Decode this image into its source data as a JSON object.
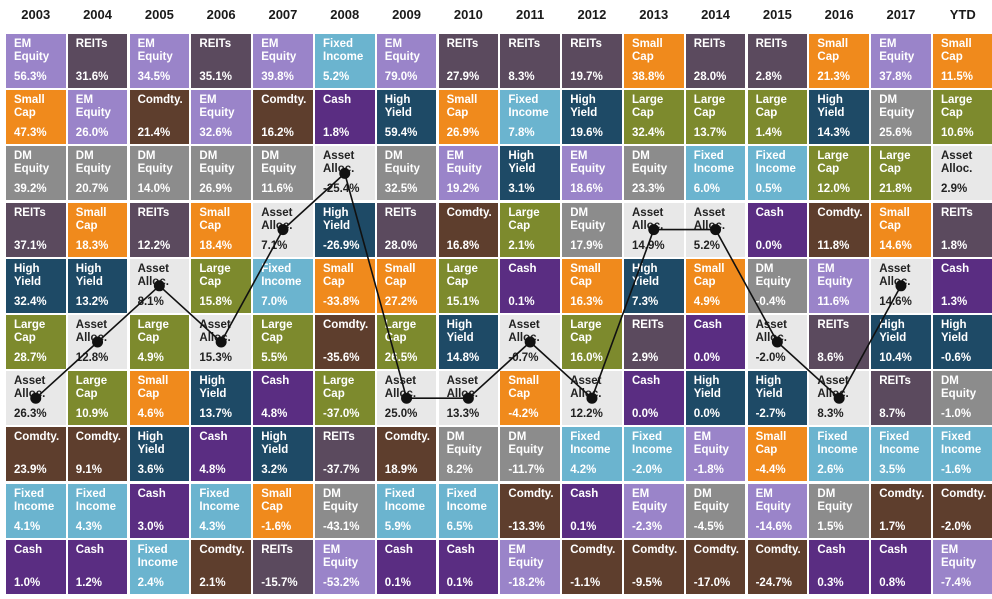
{
  "chart_data": {
    "type": "table",
    "years": [
      "2003",
      "2004",
      "2005",
      "2006",
      "2007",
      "2008",
      "2009",
      "2010",
      "2011",
      "2012",
      "2013",
      "2014",
      "2015",
      "2016",
      "2017",
      "YTD"
    ],
    "asset_colors": {
      "EM Equity": "#9a84c9",
      "REITs": "#5b4a5e",
      "Small Cap": "#f08a1c",
      "Fixed Income": "#6bb4cf",
      "Comdty.": "#5e3e2d",
      "Cash": "#5a2d82",
      "High Yield": "#1e4a66",
      "Large Cap": "#7d8a2d",
      "DM Equity": "#8c8c8c",
      "Asset Alloc.": "#e8e8e8"
    },
    "columns": [
      [
        [
          "EM Equity",
          "56.3%"
        ],
        [
          "Small Cap",
          "47.3%"
        ],
        [
          "DM Equity",
          "39.2%"
        ],
        [
          "REITs",
          "37.1%"
        ],
        [
          "High Yield",
          "32.4%"
        ],
        [
          "Large Cap",
          "28.7%"
        ],
        [
          "Asset Alloc.",
          "26.3%"
        ],
        [
          "Comdty.",
          "23.9%"
        ],
        [
          "Fixed Income",
          "4.1%"
        ],
        [
          "Cash",
          "1.0%"
        ]
      ],
      [
        [
          "REITs",
          "31.6%"
        ],
        [
          "EM Equity",
          "26.0%"
        ],
        [
          "DM Equity",
          "20.7%"
        ],
        [
          "Small Cap",
          "18.3%"
        ],
        [
          "High Yield",
          "13.2%"
        ],
        [
          "Asset Alloc.",
          "12.8%"
        ],
        [
          "Large Cap",
          "10.9%"
        ],
        [
          "Comdty.",
          "9.1%"
        ],
        [
          "Fixed Income",
          "4.3%"
        ],
        [
          "Cash",
          "1.2%"
        ]
      ],
      [
        [
          "EM Equity",
          "34.5%"
        ],
        [
          "Comdty.",
          "21.4%"
        ],
        [
          "DM Equity",
          "14.0%"
        ],
        [
          "REITs",
          "12.2%"
        ],
        [
          "Asset Alloc.",
          "8.1%"
        ],
        [
          "Large Cap",
          "4.9%"
        ],
        [
          "Small Cap",
          "4.6%"
        ],
        [
          "High Yield",
          "3.6%"
        ],
        [
          "Cash",
          "3.0%"
        ],
        [
          "Fixed Income",
          "2.4%"
        ]
      ],
      [
        [
          "REITs",
          "35.1%"
        ],
        [
          "EM Equity",
          "32.6%"
        ],
        [
          "DM Equity",
          "26.9%"
        ],
        [
          "Small Cap",
          "18.4%"
        ],
        [
          "Large Cap",
          "15.8%"
        ],
        [
          "Asset Alloc.",
          "15.3%"
        ],
        [
          "High Yield",
          "13.7%"
        ],
        [
          "Cash",
          "4.8%"
        ],
        [
          "Fixed Income",
          "4.3%"
        ],
        [
          "Comdty.",
          "2.1%"
        ]
      ],
      [
        [
          "EM Equity",
          "39.8%"
        ],
        [
          "Comdty.",
          "16.2%"
        ],
        [
          "DM Equity",
          "11.6%"
        ],
        [
          "Asset Alloc.",
          "7.1%"
        ],
        [
          "Fixed Income",
          "7.0%"
        ],
        [
          "Large Cap",
          "5.5%"
        ],
        [
          "Cash",
          "4.8%"
        ],
        [
          "High Yield",
          "3.2%"
        ],
        [
          "Small Cap",
          "-1.6%"
        ],
        [
          "REITs",
          "-15.7%"
        ]
      ],
      [
        [
          "Fixed Income",
          "5.2%"
        ],
        [
          "Cash",
          "1.8%"
        ],
        [
          "Asset Alloc.",
          "-25.4%"
        ],
        [
          "High Yield",
          "-26.9%"
        ],
        [
          "Small Cap",
          "-33.8%"
        ],
        [
          "Comdty.",
          "-35.6%"
        ],
        [
          "Large Cap",
          "-37.0%"
        ],
        [
          "REITs",
          "-37.7%"
        ],
        [
          "DM Equity",
          "-43.1%"
        ],
        [
          "EM Equity",
          "-53.2%"
        ]
      ],
      [
        [
          "EM Equity",
          "79.0%"
        ],
        [
          "High Yield",
          "59.4%"
        ],
        [
          "DM Equity",
          "32.5%"
        ],
        [
          "REITs",
          "28.0%"
        ],
        [
          "Small Cap",
          "27.2%"
        ],
        [
          "Large Cap",
          "26.5%"
        ],
        [
          "Asset Alloc.",
          "25.0%"
        ],
        [
          "Comdty.",
          "18.9%"
        ],
        [
          "Fixed Income",
          "5.9%"
        ],
        [
          "Cash",
          "0.1%"
        ]
      ],
      [
        [
          "REITs",
          "27.9%"
        ],
        [
          "Small Cap",
          "26.9%"
        ],
        [
          "EM Equity",
          "19.2%"
        ],
        [
          "Comdty.",
          "16.8%"
        ],
        [
          "Large Cap",
          "15.1%"
        ],
        [
          "High Yield",
          "14.8%"
        ],
        [
          "Asset Alloc.",
          "13.3%"
        ],
        [
          "DM Equity",
          "8.2%"
        ],
        [
          "Fixed Income",
          "6.5%"
        ],
        [
          "Cash",
          "0.1%"
        ]
      ],
      [
        [
          "REITs",
          "8.3%"
        ],
        [
          "Fixed Income",
          "7.8%"
        ],
        [
          "High Yield",
          "3.1%"
        ],
        [
          "Large Cap",
          "2.1%"
        ],
        [
          "Cash",
          "0.1%"
        ],
        [
          "Asset Alloc.",
          "-0.7%"
        ],
        [
          "Small Cap",
          "-4.2%"
        ],
        [
          "DM Equity",
          "-11.7%"
        ],
        [
          "Comdty.",
          "-13.3%"
        ],
        [
          "EM Equity",
          "-18.2%"
        ]
      ],
      [
        [
          "REITs",
          "19.7%"
        ],
        [
          "High Yield",
          "19.6%"
        ],
        [
          "EM Equity",
          "18.6%"
        ],
        [
          "DM Equity",
          "17.9%"
        ],
        [
          "Small Cap",
          "16.3%"
        ],
        [
          "Large Cap",
          "16.0%"
        ],
        [
          "Asset Alloc.",
          "12.2%"
        ],
        [
          "Fixed Income",
          "4.2%"
        ],
        [
          "Cash",
          "0.1%"
        ],
        [
          "Comdty.",
          "-1.1%"
        ]
      ],
      [
        [
          "Small Cap",
          "38.8%"
        ],
        [
          "Large Cap",
          "32.4%"
        ],
        [
          "DM Equity",
          "23.3%"
        ],
        [
          "Asset Alloc.",
          "14.9%"
        ],
        [
          "High Yield",
          "7.3%"
        ],
        [
          "REITs",
          "2.9%"
        ],
        [
          "Cash",
          "0.0%"
        ],
        [
          "Fixed Income",
          "-2.0%"
        ],
        [
          "EM Equity",
          "-2.3%"
        ],
        [
          "Comdty.",
          "-9.5%"
        ]
      ],
      [
        [
          "REITs",
          "28.0%"
        ],
        [
          "Large Cap",
          "13.7%"
        ],
        [
          "Fixed Income",
          "6.0%"
        ],
        [
          "Asset Alloc.",
          "5.2%"
        ],
        [
          "Small Cap",
          "4.9%"
        ],
        [
          "Cash",
          "0.0%"
        ],
        [
          "High Yield",
          "0.0%"
        ],
        [
          "EM Equity",
          "-1.8%"
        ],
        [
          "DM Equity",
          "-4.5%"
        ],
        [
          "Comdty.",
          "-17.0%"
        ]
      ],
      [
        [
          "REITs",
          "2.8%"
        ],
        [
          "Large Cap",
          "1.4%"
        ],
        [
          "Fixed Income",
          "0.5%"
        ],
        [
          "Cash",
          "0.0%"
        ],
        [
          "DM Equity",
          "-0.4%"
        ],
        [
          "Asset Alloc.",
          "-2.0%"
        ],
        [
          "High Yield",
          "-2.7%"
        ],
        [
          "Small Cap",
          "-4.4%"
        ],
        [
          "EM Equity",
          "-14.6%"
        ],
        [
          "Comdty.",
          "-24.7%"
        ]
      ],
      [
        [
          "Small Cap",
          "21.3%"
        ],
        [
          "High Yield",
          "14.3%"
        ],
        [
          "Large Cap",
          "12.0%"
        ],
        [
          "Comdty.",
          "11.8%"
        ],
        [
          "EM Equity",
          "11.6%"
        ],
        [
          "REITs",
          "8.6%"
        ],
        [
          "Asset Alloc.",
          "8.3%"
        ],
        [
          "Fixed Income",
          "2.6%"
        ],
        [
          "DM Equity",
          "1.5%"
        ],
        [
          "Cash",
          "0.3%"
        ]
      ],
      [
        [
          "EM Equity",
          "37.8%"
        ],
        [
          "DM Equity",
          "25.6%"
        ],
        [
          "Large Cap",
          "21.8%"
        ],
        [
          "Small Cap",
          "14.6%"
        ],
        [
          "Asset Alloc.",
          "14.6%"
        ],
        [
          "High Yield",
          "10.4%"
        ],
        [
          "REITs",
          "8.7%"
        ],
        [
          "Fixed Income",
          "3.5%"
        ],
        [
          "Comdty.",
          "1.7%"
        ],
        [
          "Cash",
          "0.8%"
        ]
      ],
      [
        [
          "Small Cap",
          "11.5%"
        ],
        [
          "Large Cap",
          "10.6%"
        ],
        [
          "Asset Alloc.",
          "2.9%"
        ],
        [
          "REITs",
          "1.8%"
        ],
        [
          "Cash",
          "1.3%"
        ],
        [
          "High Yield",
          "-0.6%"
        ],
        [
          "DM Equity",
          "-1.0%"
        ],
        [
          "Fixed Income",
          "-1.6%"
        ],
        [
          "Comdty.",
          "-2.0%"
        ],
        [
          "EM Equity",
          "-7.4%"
        ]
      ]
    ],
    "highlight_series": "Asset Alloc.",
    "highlight_years": 15
  }
}
